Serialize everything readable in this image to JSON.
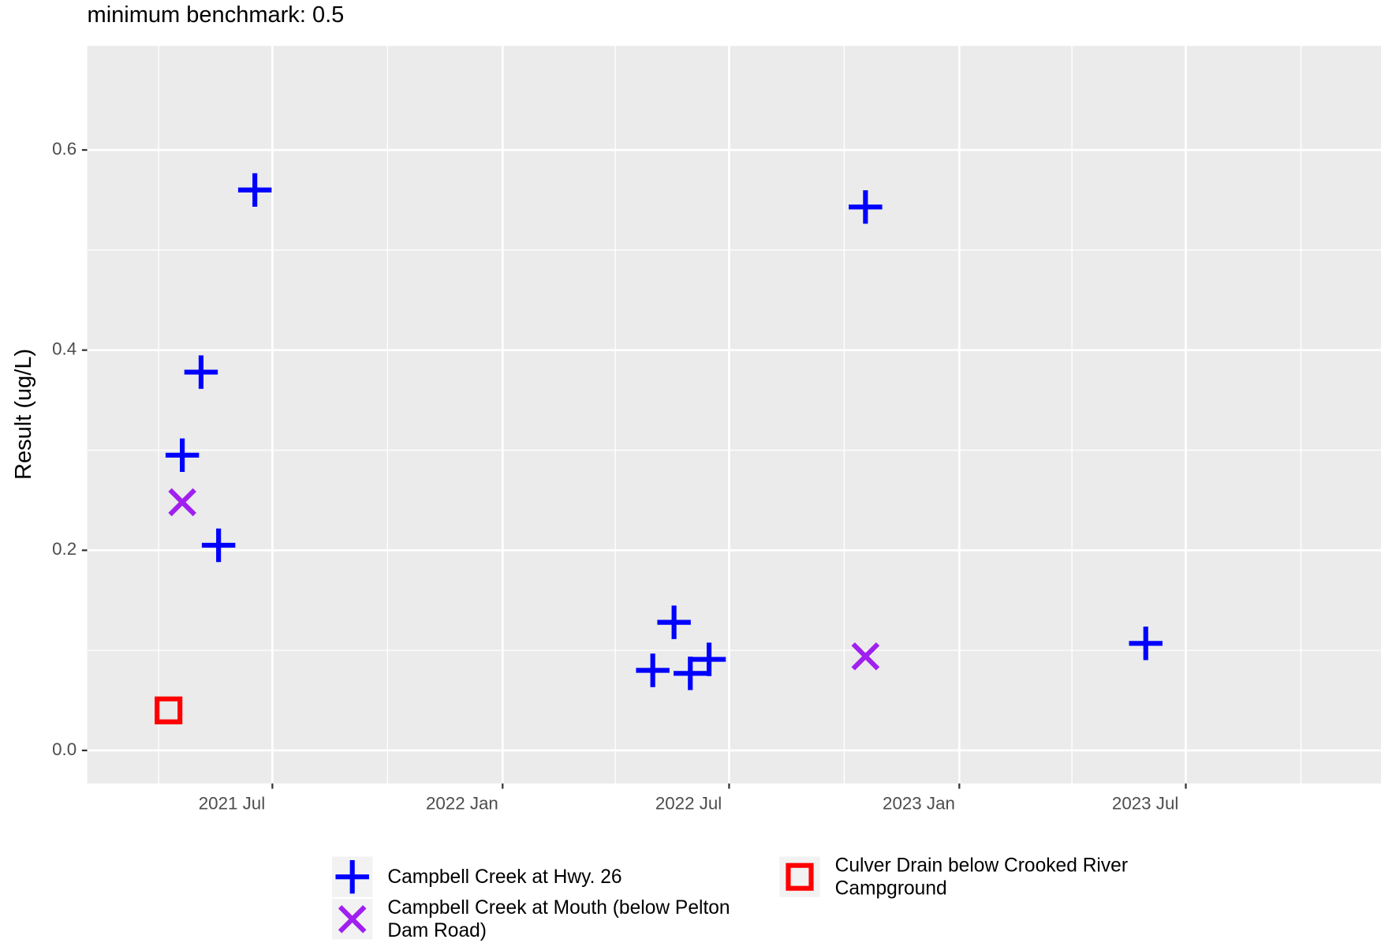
{
  "chart_data": {
    "type": "scatter",
    "title": "minimum benchmark: 0.5",
    "ylabel": "Result (ug/L)",
    "xlim": [
      "2021-02-03",
      "2023-12-04"
    ],
    "xticks": [
      {
        "value": "2021-07-01",
        "label": "2021 Jul"
      },
      {
        "value": "2022-01-01",
        "label": "2022 Jan"
      },
      {
        "value": "2022-07-01",
        "label": "2022 Jul"
      },
      {
        "value": "2023-01-01",
        "label": "2023 Jan"
      },
      {
        "value": "2023-07-01",
        "label": "2023 Jul"
      }
    ],
    "xminor": [
      "2021-04-01",
      "2021-10-01",
      "2022-04-01",
      "2022-10-01",
      "2023-04-01",
      "2023-10-01"
    ],
    "ylim": [
      -0.033,
      0.704
    ],
    "yticks": [
      {
        "value": 0,
        "label": "0.0"
      },
      0.2,
      0.4,
      0.6
    ],
    "yminor": [
      0.1,
      0.3,
      0.5
    ],
    "grid": true,
    "legend": "bottom",
    "series": [
      {
        "name": "Campbell Creek at Hwy. 26",
        "color": "#0000ff",
        "shape": "plus",
        "x": [
          "2021-06-17",
          "2021-05-05",
          "2021-04-20",
          "2021-05-19",
          "2022-05-01",
          "2022-05-18",
          "2022-05-31",
          "2022-06-15",
          "2022-10-18",
          "2023-05-30"
        ],
        "values": [
          0.56,
          0.378,
          0.295,
          0.205,
          0.08,
          0.128,
          0.077,
          0.091,
          0.543,
          0.107
        ]
      },
      {
        "name": "Campbell Creek at Mouth (below Pelton Dam Road)",
        "color": "#a020f0",
        "shape": "cross",
        "x": [
          "2021-04-20",
          "2022-10-18"
        ],
        "values": [
          0.248,
          0.094
        ]
      },
      {
        "name": "Culver Drain below Crooked River Campground",
        "color": "#ff0000",
        "shape": "square",
        "x": [
          "2021-04-09"
        ],
        "values": [
          0.04
        ]
      }
    ]
  }
}
